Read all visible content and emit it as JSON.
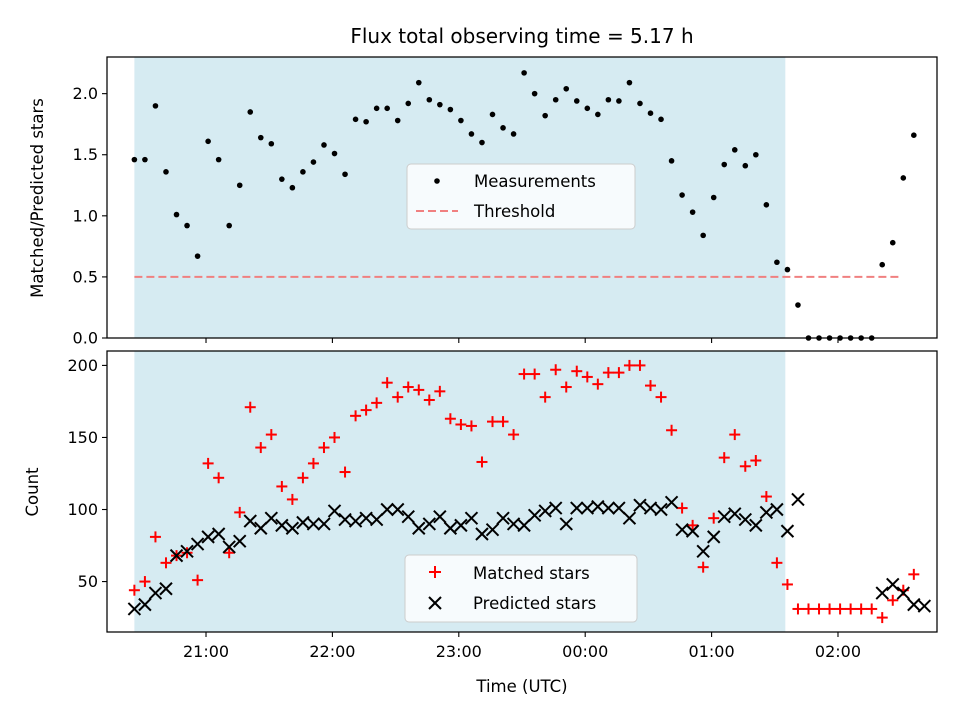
{
  "title": "Flux total observing time = 5.17 h",
  "xlabel": "Time (UTC)",
  "observing_window": {
    "start": "20:26",
    "end": "01:35",
    "color": "#add8e6"
  },
  "x_ticks": [
    "21:00",
    "22:00",
    "23:00",
    "00:00",
    "01:00",
    "02:00"
  ],
  "chart_data": [
    {
      "type": "scatter",
      "ylabel": "Matched/Predicted stars",
      "ylim": [
        0,
        2.3
      ],
      "y_ticks": [
        "0.0",
        "0.5",
        "1.0",
        "1.5",
        "2.0"
      ],
      "legend_position": "center",
      "threshold": {
        "name": "Threshold",
        "value": 0.5,
        "color": "#f08080",
        "style": "dashed",
        "x_range": [
          "20:26",
          "02:30"
        ]
      },
      "series": [
        {
          "name": "Measurements",
          "color": "#000000",
          "marker": "dot",
          "points": [
            [
              "20:26",
              1.46
            ],
            [
              "20:31",
              1.46
            ],
            [
              "20:36",
              1.9
            ],
            [
              "20:41",
              1.36
            ],
            [
              "20:46",
              1.01
            ],
            [
              "20:51",
              0.92
            ],
            [
              "20:56",
              0.67
            ],
            [
              "21:01",
              1.61
            ],
            [
              "21:06",
              1.46
            ],
            [
              "21:11",
              0.92
            ],
            [
              "21:16",
              1.25
            ],
            [
              "21:21",
              1.85
            ],
            [
              "21:26",
              1.64
            ],
            [
              "21:31",
              1.59
            ],
            [
              "21:36",
              1.3
            ],
            [
              "21:41",
              1.23
            ],
            [
              "21:46",
              1.36
            ],
            [
              "21:51",
              1.44
            ],
            [
              "21:56",
              1.58
            ],
            [
              "22:01",
              1.51
            ],
            [
              "22:06",
              1.34
            ],
            [
              "22:11",
              1.79
            ],
            [
              "22:16",
              1.77
            ],
            [
              "22:21",
              1.88
            ],
            [
              "22:26",
              1.88
            ],
            [
              "22:31",
              1.78
            ],
            [
              "22:36",
              1.92
            ],
            [
              "22:41",
              2.09
            ],
            [
              "22:46",
              1.95
            ],
            [
              "22:51",
              1.91
            ],
            [
              "22:56",
              1.87
            ],
            [
              "23:01",
              1.78
            ],
            [
              "23:06",
              1.67
            ],
            [
              "23:11",
              1.6
            ],
            [
              "23:16",
              1.83
            ],
            [
              "23:21",
              1.72
            ],
            [
              "23:26",
              1.67
            ],
            [
              "23:31",
              2.17
            ],
            [
              "23:36",
              2.0
            ],
            [
              "23:41",
              1.82
            ],
            [
              "23:46",
              1.95
            ],
            [
              "23:51",
              2.04
            ],
            [
              "23:56",
              1.94
            ],
            [
              "00:01",
              1.88
            ],
            [
              "00:06",
              1.83
            ],
            [
              "00:11",
              1.95
            ],
            [
              "00:16",
              1.94
            ],
            [
              "00:21",
              2.09
            ],
            [
              "00:26",
              1.92
            ],
            [
              "00:31",
              1.84
            ],
            [
              "00:36",
              1.79
            ],
            [
              "00:41",
              1.45
            ],
            [
              "00:46",
              1.17
            ],
            [
              "00:51",
              1.03
            ],
            [
              "00:56",
              0.84
            ],
            [
              "01:01",
              1.15
            ],
            [
              "01:06",
              1.42
            ],
            [
              "01:11",
              1.54
            ],
            [
              "01:16",
              1.41
            ],
            [
              "01:21",
              1.5
            ],
            [
              "01:26",
              1.09
            ],
            [
              "01:31",
              0.62
            ],
            [
              "01:36",
              0.56
            ],
            [
              "01:41",
              0.27
            ],
            [
              "01:46",
              0.0
            ],
            [
              "01:51",
              0.0
            ],
            [
              "01:56",
              0.0
            ],
            [
              "02:01",
              0.0
            ],
            [
              "02:06",
              0.0
            ],
            [
              "02:11",
              0.0
            ],
            [
              "02:16",
              0.0
            ],
            [
              "02:21",
              0.6
            ],
            [
              "02:26",
              0.78
            ],
            [
              "02:31",
              1.31
            ],
            [
              "02:36",
              1.66
            ]
          ]
        }
      ]
    },
    {
      "type": "scatter",
      "ylabel": "Count",
      "ylim": [
        15,
        210
      ],
      "y_ticks": [
        "50",
        "100",
        "150",
        "200"
      ],
      "legend_position": "bottom-center",
      "series": [
        {
          "name": "Matched stars",
          "color": "#ff0000",
          "marker": "plus",
          "points": [
            [
              "20:26",
              44
            ],
            [
              "20:31",
              50
            ],
            [
              "20:36",
              81
            ],
            [
              "20:41",
              63
            ],
            [
              "20:46",
              68
            ],
            [
              "20:51",
              70
            ],
            [
              "20:56",
              51
            ],
            [
              "21:01",
              132
            ],
            [
              "21:06",
              122
            ],
            [
              "21:11",
              70
            ],
            [
              "21:16",
              98
            ],
            [
              "21:21",
              171
            ],
            [
              "21:26",
              143
            ],
            [
              "21:31",
              152
            ],
            [
              "21:36",
              116
            ],
            [
              "21:41",
              107
            ],
            [
              "21:46",
              122
            ],
            [
              "21:51",
              132
            ],
            [
              "21:56",
              143
            ],
            [
              "22:01",
              150
            ],
            [
              "22:06",
              126
            ],
            [
              "22:11",
              165
            ],
            [
              "22:16",
              169
            ],
            [
              "22:21",
              174
            ],
            [
              "22:26",
              188
            ],
            [
              "22:31",
              178
            ],
            [
              "22:36",
              185
            ],
            [
              "22:41",
              183
            ],
            [
              "22:46",
              176
            ],
            [
              "22:51",
              182
            ],
            [
              "22:56",
              163
            ],
            [
              "23:01",
              159
            ],
            [
              "23:06",
              158
            ],
            [
              "23:11",
              133
            ],
            [
              "23:16",
              161
            ],
            [
              "23:21",
              161
            ],
            [
              "23:26",
              152
            ],
            [
              "23:31",
              194
            ],
            [
              "23:36",
              194
            ],
            [
              "23:41",
              178
            ],
            [
              "23:46",
              197
            ],
            [
              "23:51",
              185
            ],
            [
              "23:56",
              196
            ],
            [
              "00:01",
              192
            ],
            [
              "00:06",
              187
            ],
            [
              "00:11",
              195
            ],
            [
              "00:16",
              195
            ],
            [
              "00:21",
              200
            ],
            [
              "00:26",
              200
            ],
            [
              "00:31",
              186
            ],
            [
              "00:36",
              178
            ],
            [
              "00:41",
              155
            ],
            [
              "00:46",
              101
            ],
            [
              "00:51",
              89
            ],
            [
              "00:56",
              60
            ],
            [
              "01:01",
              94
            ],
            [
              "01:06",
              136
            ],
            [
              "01:11",
              152
            ],
            [
              "01:16",
              130
            ],
            [
              "01:21",
              134
            ],
            [
              "01:26",
              109
            ],
            [
              "01:31",
              63
            ],
            [
              "01:36",
              48
            ],
            [
              "01:41",
              31
            ],
            [
              "01:46",
              31
            ],
            [
              "01:51",
              31
            ],
            [
              "01:56",
              31
            ],
            [
              "02:01",
              31
            ],
            [
              "02:06",
              31
            ],
            [
              "02:11",
              31
            ],
            [
              "02:16",
              31
            ],
            [
              "02:21",
              25
            ],
            [
              "02:26",
              37
            ],
            [
              "02:31",
              44
            ],
            [
              "02:36",
              55
            ]
          ]
        },
        {
          "name": "Predicted stars",
          "color": "#000000",
          "marker": "x",
          "points": [
            [
              "20:26",
              31
            ],
            [
              "20:31",
              34
            ],
            [
              "20:36",
              42
            ],
            [
              "20:41",
              45
            ],
            [
              "20:46",
              68
            ],
            [
              "20:51",
              71
            ],
            [
              "20:56",
              76
            ],
            [
              "21:01",
              81
            ],
            [
              "21:06",
              83
            ],
            [
              "21:11",
              74
            ],
            [
              "21:16",
              78
            ],
            [
              "21:21",
              92
            ],
            [
              "21:26",
              87
            ],
            [
              "21:31",
              94
            ],
            [
              "21:36",
              89
            ],
            [
              "21:41",
              87
            ],
            [
              "21:46",
              91
            ],
            [
              "21:51",
              90
            ],
            [
              "21:56",
              90
            ],
            [
              "22:01",
              99
            ],
            [
              "22:06",
              93
            ],
            [
              "22:11",
              92
            ],
            [
              "22:16",
              94
            ],
            [
              "22:21",
              93
            ],
            [
              "22:26",
              100
            ],
            [
              "22:31",
              100
            ],
            [
              "22:36",
              95
            ],
            [
              "22:41",
              87
            ],
            [
              "22:46",
              90
            ],
            [
              "22:51",
              95
            ],
            [
              "22:56",
              87
            ],
            [
              "23:01",
              89
            ],
            [
              "23:06",
              94
            ],
            [
              "23:11",
              83
            ],
            [
              "23:16",
              86
            ],
            [
              "23:21",
              94
            ],
            [
              "23:26",
              90
            ],
            [
              "23:31",
              89
            ],
            [
              "23:36",
              96
            ],
            [
              "23:41",
              99
            ],
            [
              "23:46",
              101
            ],
            [
              "23:51",
              90
            ],
            [
              "23:56",
              101
            ],
            [
              "00:01",
              101
            ],
            [
              "00:06",
              102
            ],
            [
              "00:11",
              101
            ],
            [
              "00:16",
              101
            ],
            [
              "00:21",
              94
            ],
            [
              "00:26",
              103
            ],
            [
              "00:31",
              101
            ],
            [
              "00:36",
              100
            ],
            [
              "00:41",
              105
            ],
            [
              "00:46",
              86
            ],
            [
              "00:51",
              85
            ],
            [
              "00:56",
              71
            ],
            [
              "01:01",
              81
            ],
            [
              "01:06",
              95
            ],
            [
              "01:11",
              97
            ],
            [
              "01:16",
              93
            ],
            [
              "01:21",
              89
            ],
            [
              "01:26",
              98
            ],
            [
              "01:31",
              100
            ],
            [
              "01:36",
              85
            ],
            [
              "01:41",
              107
            ],
            [
              "02:21",
              42
            ],
            [
              "02:26",
              48
            ],
            [
              "02:31",
              42
            ],
            [
              "02:36",
              34
            ],
            [
              "02:41",
              33
            ]
          ]
        }
      ]
    }
  ]
}
